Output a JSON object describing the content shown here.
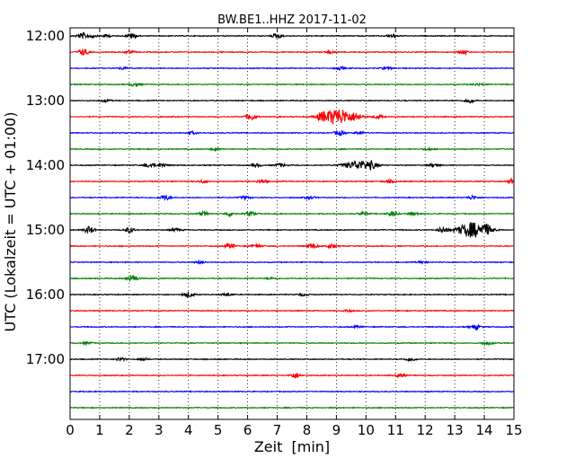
{
  "chart_data": {
    "type": "line",
    "title": "BW.BE1..HHZ 2017-11-02",
    "xlabel": "Zeit  [min]",
    "ylabel": "UTC (Lokalzeit = UTC + 01:00)",
    "xlim": [
      0,
      15
    ],
    "x_ticks": [
      "0",
      "1",
      "2",
      "3",
      "4",
      "5",
      "6",
      "7",
      "8",
      "9",
      "10",
      "11",
      "12",
      "13",
      "14",
      "15"
    ],
    "y_ticks": [
      "12:00",
      "13:00",
      "14:00",
      "15:00",
      "16:00",
      "17:00"
    ],
    "grid_x": true,
    "trace_colors": [
      "#000000",
      "#ff0000",
      "#0000ff",
      "#008000"
    ],
    "traces_per_hour": 4,
    "minutes_per_trace": 15,
    "trace_start_times": [
      "12:00",
      "12:15",
      "12:30",
      "12:45",
      "13:00",
      "13:15",
      "13:30",
      "13:45",
      "14:00",
      "14:15",
      "14:30",
      "14:45",
      "15:00",
      "15:15",
      "15:30",
      "15:45",
      "16:00",
      "16:15",
      "16:30",
      "16:45",
      "17:00",
      "17:15",
      "17:30",
      "17:45"
    ],
    "noise_amplitude": 0.07,
    "events": [
      [
        {
          "t": 0.4,
          "a": 0.35
        },
        {
          "t": 0.7,
          "a": 0.25
        },
        {
          "t": 1.2,
          "a": 0.2
        },
        {
          "t": 2.1,
          "a": 0.35
        },
        {
          "t": 7.0,
          "a": 0.3
        },
        {
          "t": 10.9,
          "a": 0.22
        }
      ],
      [
        {
          "t": 0.45,
          "a": 0.45
        },
        {
          "t": 2.0,
          "a": 0.2
        },
        {
          "t": 8.8,
          "a": 0.15
        },
        {
          "t": 13.3,
          "a": 0.25
        }
      ],
      [
        {
          "t": 1.8,
          "a": 0.15
        },
        {
          "t": 9.1,
          "a": 0.2
        },
        {
          "t": 10.7,
          "a": 0.18
        }
      ],
      [
        {
          "t": 2.2,
          "a": 0.25
        },
        {
          "t": 13.8,
          "a": 0.15
        }
      ],
      [
        {
          "t": 1.2,
          "a": 0.2
        },
        {
          "t": 13.5,
          "a": 0.3
        }
      ],
      [
        {
          "t": 6.1,
          "a": 0.45
        },
        {
          "t": 8.5,
          "a": 0.35
        },
        {
          "t": 9.05,
          "a": 1.15
        },
        {
          "t": 9.7,
          "a": 0.35
        },
        {
          "t": 10.4,
          "a": 0.25
        }
      ],
      [
        {
          "t": 4.1,
          "a": 0.2
        },
        {
          "t": 9.1,
          "a": 0.35
        },
        {
          "t": 9.8,
          "a": 0.2
        }
      ],
      [
        {
          "t": 4.9,
          "a": 0.15
        },
        {
          "t": 12.1,
          "a": 0.12
        }
      ],
      [
        {
          "t": 2.7,
          "a": 0.3
        },
        {
          "t": 3.1,
          "a": 0.3
        },
        {
          "t": 6.3,
          "a": 0.2
        },
        {
          "t": 7.1,
          "a": 0.25
        },
        {
          "t": 9.75,
          "a": 0.6
        },
        {
          "t": 10.2,
          "a": 0.3
        },
        {
          "t": 12.3,
          "a": 0.25
        }
      ],
      [
        {
          "t": 4.5,
          "a": 0.2
        },
        {
          "t": 6.5,
          "a": 0.25
        },
        {
          "t": 10.8,
          "a": 0.2
        },
        {
          "t": 15.0,
          "a": 0.5
        }
      ],
      [
        {
          "t": 3.2,
          "a": 0.35
        },
        {
          "t": 5.9,
          "a": 0.2
        },
        {
          "t": 8.1,
          "a": 0.2
        },
        {
          "t": 13.6,
          "a": 0.25
        }
      ],
      [
        {
          "t": 4.5,
          "a": 0.25
        },
        {
          "t": 5.4,
          "a": 0.28
        },
        {
          "t": 6.1,
          "a": 0.25
        },
        {
          "t": 9.9,
          "a": 0.2
        },
        {
          "t": 10.9,
          "a": 0.35
        },
        {
          "t": 11.6,
          "a": 0.2
        }
      ],
      [
        {
          "t": 0.65,
          "a": 0.45
        },
        {
          "t": 2.0,
          "a": 0.35
        },
        {
          "t": 3.6,
          "a": 0.2
        },
        {
          "t": 12.6,
          "a": 0.35
        },
        {
          "t": 13.6,
          "a": 1.05
        },
        {
          "t": 14.1,
          "a": 0.4
        }
      ],
      [
        {
          "t": 5.4,
          "a": 0.35
        },
        {
          "t": 6.3,
          "a": 0.2
        },
        {
          "t": 8.2,
          "a": 0.35
        },
        {
          "t": 8.8,
          "a": 0.25
        }
      ],
      [
        {
          "t": 4.4,
          "a": 0.2
        },
        {
          "t": 11.9,
          "a": 0.15
        }
      ],
      [
        {
          "t": 2.1,
          "a": 0.5
        },
        {
          "t": 6.8,
          "a": 0.12
        }
      ],
      [
        {
          "t": 4.0,
          "a": 0.38
        },
        {
          "t": 5.3,
          "a": 0.2
        },
        {
          "t": 7.9,
          "a": 0.15
        }
      ],
      [
        {
          "t": 9.4,
          "a": 0.1
        }
      ],
      [
        {
          "t": 13.7,
          "a": 0.3
        },
        {
          "t": 9.7,
          "a": 0.12
        }
      ],
      [
        {
          "t": 14.1,
          "a": 0.25
        },
        {
          "t": 0.6,
          "a": 0.12
        }
      ],
      [
        {
          "t": 1.7,
          "a": 0.2
        },
        {
          "t": 2.5,
          "a": 0.15
        },
        {
          "t": 11.5,
          "a": 0.25
        }
      ],
      [
        {
          "t": 7.6,
          "a": 0.4
        },
        {
          "t": 11.2,
          "a": 0.25
        }
      ],
      [],
      []
    ]
  }
}
